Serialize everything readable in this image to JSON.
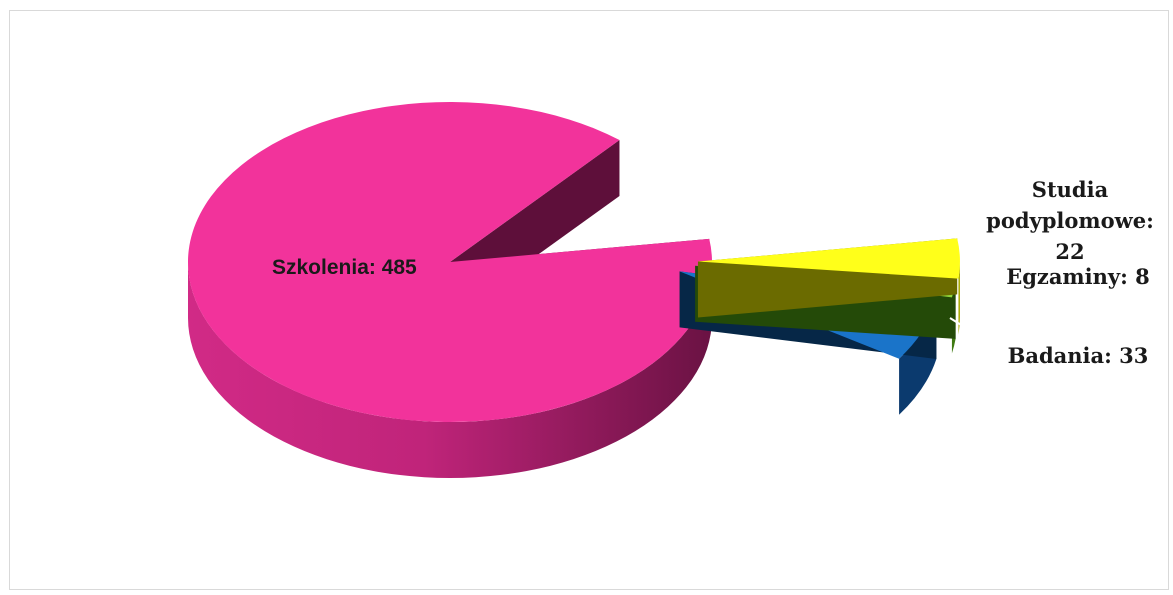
{
  "chart_data": {
    "type": "pie",
    "style": "3d-exploded",
    "slices": [
      {
        "label": "Szkolenia",
        "value": 485,
        "display": "Szkolenia: 485",
        "color": "#f2339b",
        "side": "#a81a67",
        "dark": "#5e0f3a"
      },
      {
        "label": "Studia podyplomowe",
        "value": 22,
        "display": [
          "Studia",
          "podyplomowe:",
          "22"
        ],
        "color": "#ffff1a",
        "side": "#a8a800",
        "dark": "#6b6b00"
      },
      {
        "label": "Egzaminy",
        "value": 8,
        "display": "Egzaminy: 8",
        "color": "#8fd63a",
        "side": "#3f7a12",
        "dark": "#244a08"
      },
      {
        "label": "Badania",
        "value": 33,
        "display": "Badania:  33",
        "color": "#1a74c9",
        "side": "#0b3a6e",
        "dark": "#062747"
      }
    ],
    "legend": "none"
  }
}
